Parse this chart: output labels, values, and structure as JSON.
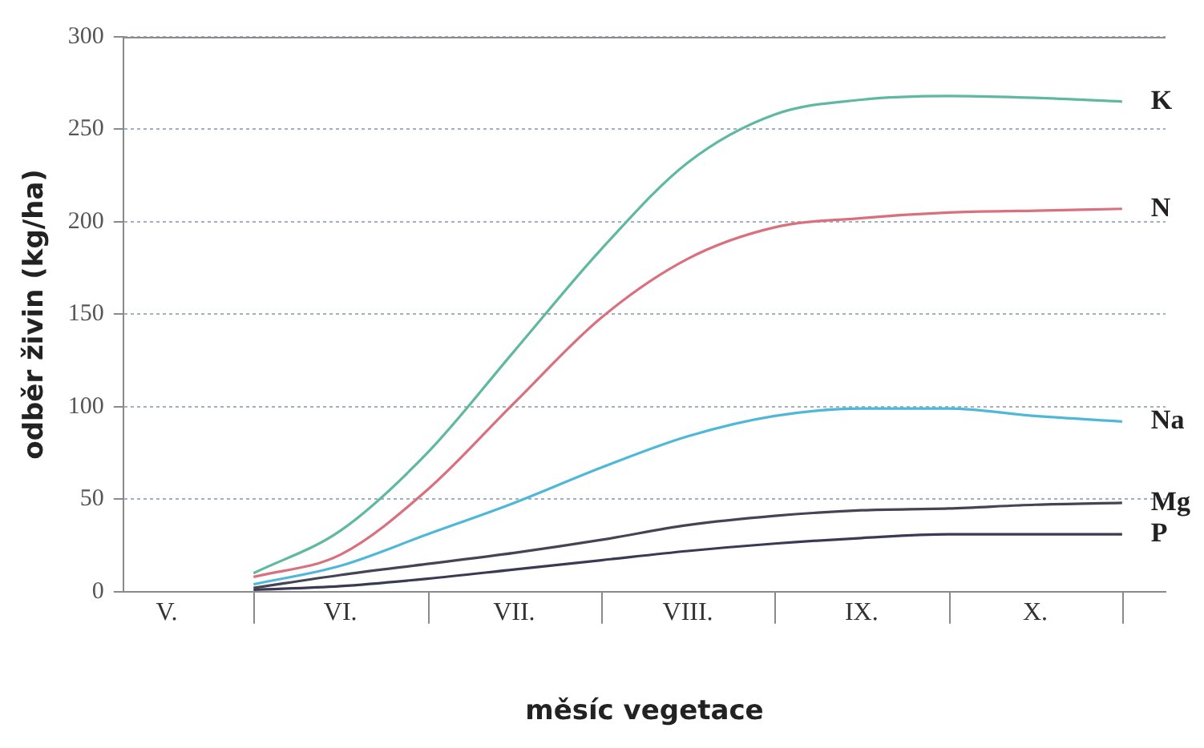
{
  "chart_data": {
    "type": "line",
    "xlabel": "měsíc vegetace",
    "ylabel": "odběr živin (kg/ha)",
    "categories": [
      "V.",
      null,
      "VI.",
      null,
      "VII.",
      null,
      "VIII.",
      null,
      "IX.",
      null,
      "X.",
      null
    ],
    "ylim": [
      0,
      300
    ],
    "yticks": [
      0,
      50,
      100,
      150,
      200,
      250,
      300
    ],
    "grid": "y",
    "legend": false,
    "marker": "none",
    "line_style": "solid",
    "series": [
      {
        "name": "K",
        "color": "#5fb8a0",
        "values": [
          null,
          10,
          33,
          75,
          130,
          185,
          232,
          258,
          266,
          268,
          267,
          265
        ]
      },
      {
        "name": "N",
        "color": "#d9707e",
        "values": [
          null,
          8,
          20,
          55,
          102,
          148,
          180,
          197,
          202,
          205,
          206,
          207
        ]
      },
      {
        "name": "Na",
        "color": "#4fb8d8",
        "values": [
          null,
          4,
          14,
          31,
          48,
          67,
          84,
          95,
          99,
          99,
          95,
          92
        ]
      },
      {
        "name": "Mg",
        "color": "#444455",
        "values": [
          null,
          2,
          9,
          15,
          21,
          28,
          36,
          41,
          44,
          45,
          47,
          48
        ]
      },
      {
        "name": "P",
        "color": "#3a3a55",
        "values": [
          null,
          1,
          3,
          7,
          12,
          17,
          22,
          26,
          29,
          31,
          31,
          31
        ]
      }
    ]
  }
}
